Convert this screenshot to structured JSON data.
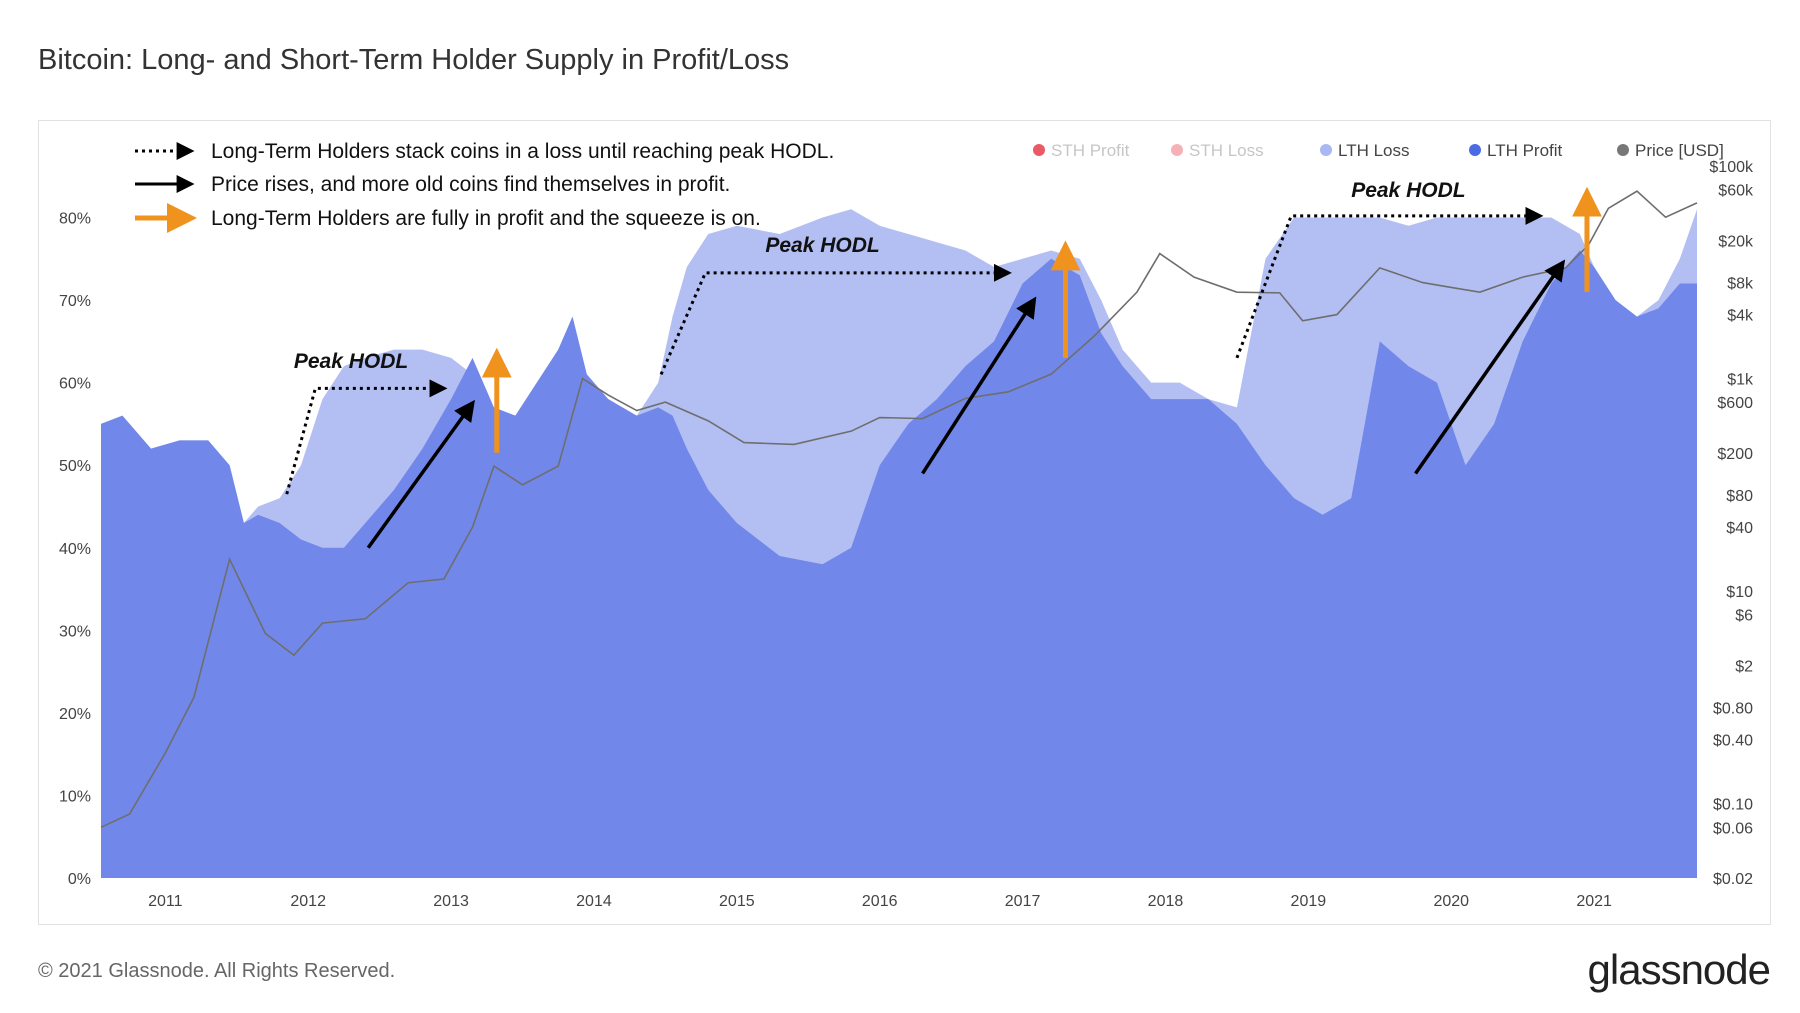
{
  "title": "Bitcoin: Long- and Short-Term Holder Supply in Profit/Loss",
  "footer": {
    "copyright": "© 2021 Glassnode. All Rights Reserved.",
    "logo": "glassnode"
  },
  "watermark": "glassnode",
  "colors": {
    "lth_loss": "#b3bff3",
    "lth_profit": "#7188ea",
    "sth_profit": "#e84855",
    "sth_loss": "#f4a9ad",
    "price": "#6e6e6e",
    "orange_arrow": "#f0931e",
    "black_arrow": "#000000"
  },
  "legend_items": [
    {
      "label": "STH Profit",
      "color": "#e84855",
      "muted": true
    },
    {
      "label": "STH Loss",
      "color": "#f4a9ad",
      "muted": true
    },
    {
      "label": "LTH Loss",
      "color": "#a9b8f2",
      "muted": false
    },
    {
      "label": "LTH Profit",
      "color": "#4a6be3",
      "muted": false
    },
    {
      "label": "Price [USD]",
      "color": "#777777",
      "muted": false
    }
  ],
  "annotations": {
    "key": [
      {
        "style": "dotted",
        "text": "Long-Term Holders stack coins in a loss until reaching peak HODL."
      },
      {
        "style": "solid",
        "text": "Price rises, and more old coins find themselves in profit."
      },
      {
        "style": "orange",
        "text": "Long-Term Holders are fully in profit and the squeeze is on."
      }
    ],
    "peak_labels": [
      "Peak HODL",
      "Peak HODL",
      "Peak HODL"
    ]
  },
  "chart_data": {
    "type": "area",
    "x_ticks": [
      "2011",
      "2012",
      "2013",
      "2014",
      "2015",
      "2016",
      "2017",
      "2018",
      "2019",
      "2020",
      "2021"
    ],
    "y_left_ticks": [
      "0%",
      "10%",
      "20%",
      "30%",
      "40%",
      "50%",
      "60%",
      "70%",
      "80%"
    ],
    "y_left_range": [
      0,
      82
    ],
    "y_right_ticks": [
      "$100k",
      "$60k",
      "$20k",
      "$8k",
      "$4k",
      "$1k",
      "$600",
      "$200",
      "$80",
      "$40",
      "$10",
      "$6",
      "$2",
      "$0.80",
      "$0.40",
      "$0.10",
      "$0.06",
      "$0.02"
    ],
    "y_right_scale": "log",
    "y_right_range": [
      0.02,
      100000
    ],
    "series": [
      {
        "name": "LTH Loss",
        "note": "upper boundary of total LTH supply (%)",
        "x": [
          2010.55,
          2010.7,
          2010.9,
          2011.1,
          2011.3,
          2011.45,
          2011.55,
          2011.65,
          2011.8,
          2011.95,
          2012.1,
          2012.25,
          2012.4,
          2012.6,
          2012.8,
          2013.0,
          2013.15,
          2013.3,
          2013.45,
          2013.6,
          2013.75,
          2013.85,
          2013.95,
          2014.1,
          2014.3,
          2014.45,
          2014.55,
          2014.65,
          2014.8,
          2015.0,
          2015.3,
          2015.6,
          2015.8,
          2016.0,
          2016.2,
          2016.4,
          2016.6,
          2016.8,
          2017.0,
          2017.2,
          2017.4,
          2017.55,
          2017.7,
          2017.9,
          2018.1,
          2018.3,
          2018.5,
          2018.7,
          2018.9,
          2019.1,
          2019.3,
          2019.5,
          2019.7,
          2019.9,
          2020.1,
          2020.3,
          2020.5,
          2020.7,
          2020.9,
          2021.0,
          2021.15,
          2021.3,
          2021.45,
          2021.6,
          2021.72
        ],
        "values": [
          55,
          56,
          52,
          53,
          53,
          50,
          43,
          45,
          46,
          50,
          58,
          62,
          63,
          64,
          64,
          63,
          61,
          57,
          56,
          60,
          64,
          68,
          61,
          58,
          56,
          60,
          68,
          74,
          78,
          79,
          78,
          80,
          81,
          79,
          78,
          77,
          76,
          74,
          75,
          76,
          75,
          70,
          64,
          60,
          60,
          58,
          57,
          75,
          80,
          80,
          80,
          80,
          79,
          80,
          80,
          80,
          80,
          80,
          78,
          74,
          70,
          68,
          70,
          75,
          81
        ]
      },
      {
        "name": "LTH Profit",
        "note": "approximate LTH supply in profit (%)",
        "x": [
          2010.55,
          2010.7,
          2010.9,
          2011.1,
          2011.3,
          2011.45,
          2011.55,
          2011.65,
          2011.8,
          2011.95,
          2012.1,
          2012.25,
          2012.4,
          2012.6,
          2012.8,
          2013.0,
          2013.15,
          2013.3,
          2013.45,
          2013.6,
          2013.75,
          2013.85,
          2013.95,
          2014.1,
          2014.3,
          2014.45,
          2014.55,
          2014.65,
          2014.8,
          2015.0,
          2015.3,
          2015.6,
          2015.8,
          2016.0,
          2016.2,
          2016.4,
          2016.6,
          2016.8,
          2017.0,
          2017.2,
          2017.4,
          2017.55,
          2017.7,
          2017.9,
          2018.1,
          2018.3,
          2018.5,
          2018.7,
          2018.9,
          2019.1,
          2019.3,
          2019.5,
          2019.7,
          2019.9,
          2020.1,
          2020.3,
          2020.5,
          2020.7,
          2020.9,
          2021.0,
          2021.15,
          2021.3,
          2021.45,
          2021.6,
          2021.72
        ],
        "values": [
          55,
          56,
          52,
          53,
          53,
          50,
          43,
          44,
          43,
          41,
          40,
          40,
          43,
          47,
          52,
          58,
          63,
          57,
          56,
          60,
          64,
          68,
          61,
          58,
          56,
          57,
          56,
          52,
          47,
          43,
          39,
          38,
          40,
          50,
          55,
          58,
          62,
          65,
          72,
          75,
          73,
          66,
          62,
          58,
          58,
          58,
          55,
          50,
          46,
          44,
          46,
          65,
          62,
          60,
          50,
          55,
          65,
          72,
          76,
          74,
          70,
          68,
          69,
          72,
          72
        ]
      },
      {
        "name": "Price [USD]",
        "x": [
          2010.55,
          2010.75,
          2011.0,
          2011.2,
          2011.45,
          2011.7,
          2011.9,
          2012.1,
          2012.4,
          2012.7,
          2012.95,
          2013.15,
          2013.3,
          2013.5,
          2013.75,
          2013.92,
          2014.1,
          2014.3,
          2014.5,
          2014.8,
          2015.05,
          2015.4,
          2015.8,
          2016.0,
          2016.3,
          2016.6,
          2016.9,
          2017.2,
          2017.5,
          2017.8,
          2017.96,
          2018.2,
          2018.5,
          2018.8,
          2018.96,
          2019.2,
          2019.5,
          2019.8,
          2020.0,
          2020.2,
          2020.5,
          2020.8,
          2020.96,
          2021.1,
          2021.3,
          2021.5,
          2021.72
        ],
        "values": [
          0.06,
          0.08,
          0.3,
          1.0,
          20,
          4,
          2.5,
          5,
          5.5,
          12,
          13,
          40,
          150,
          100,
          150,
          1000,
          700,
          500,
          600,
          400,
          250,
          240,
          320,
          430,
          420,
          650,
          750,
          1100,
          2500,
          6500,
          15000,
          9000,
          6500,
          6400,
          3500,
          4000,
          11000,
          8000,
          7200,
          6500,
          9000,
          11000,
          18000,
          40000,
          58000,
          33000,
          45000
        ]
      }
    ],
    "grid": false,
    "legend_position": "top-right"
  }
}
